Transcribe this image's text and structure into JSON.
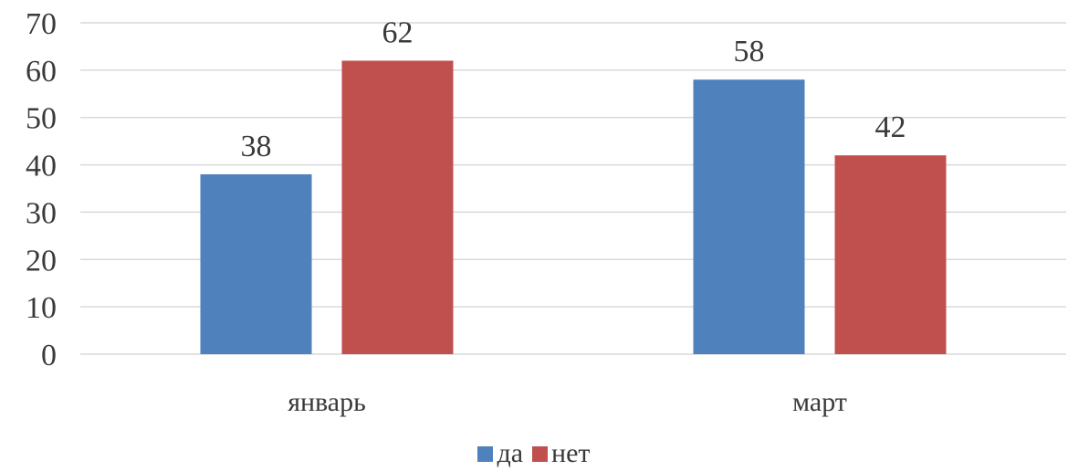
{
  "chart_data": {
    "type": "bar",
    "categories": [
      "январь",
      "март"
    ],
    "series": [
      {
        "name": "да",
        "values": [
          38,
          58
        ],
        "color": "#4f81bd"
      },
      {
        "name": "нет",
        "values": [
          62,
          42
        ],
        "color": "#c0504d"
      }
    ],
    "ylim": [
      0,
      70
    ],
    "yticks": [
      0,
      10,
      20,
      30,
      40,
      50,
      60,
      70
    ],
    "grid": true,
    "legend_position": "bottom",
    "data_labels": true
  }
}
